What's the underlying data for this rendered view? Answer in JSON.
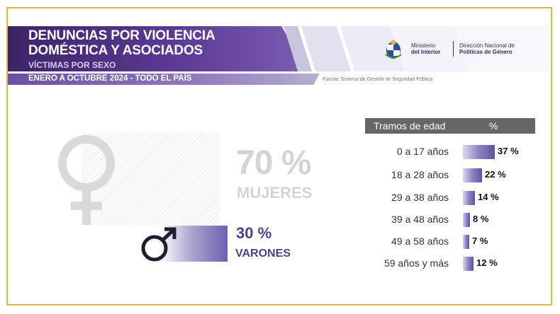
{
  "header": {
    "title_line1": "DENUNCIAS POR VIOLENCIA",
    "title_line2": "DOMÉSTICA Y ASOCIADOS",
    "subtitle": "VÍCTIMAS POR SEXO",
    "period": "ENERO A OCTUBRE 2024 - TODO EL PAÍS",
    "source": "Fuente: Sistema de Gestión de Seguridad Pública"
  },
  "logos": {
    "ministerio_line1": "Ministerio",
    "ministerio_line2": "del Interior",
    "direccion_line1": "Dirección Nacional de",
    "direccion_line2": "Políticas de Género"
  },
  "gender": {
    "women_pct_text": "70 %",
    "women_label": "MUJERES",
    "men_pct_text": "30 %",
    "men_label": "VARONES"
  },
  "age_table": {
    "col_label": "Tramos de edad",
    "col_pct": "%"
  },
  "colors": {
    "accent_purple": "#5a3a92",
    "frame_gold": "#e3b64a",
    "men_text": "#4d3f8a",
    "women_text": "#d4d4d4",
    "table_header": "#666666"
  },
  "chart_data": [
    {
      "type": "bar",
      "categories": [
        "MUJERES",
        "VARONES"
      ],
      "values": [
        70,
        30
      ],
      "value_labels": [
        "70 %",
        "30 %"
      ],
      "xlim": [
        0,
        100
      ]
    },
    {
      "type": "bar",
      "orientation": "horizontal",
      "categories": [
        "0 a 17 años",
        "18 a 28 años",
        "29 a 38 años",
        "39 a 48 años",
        "49 a 58 años",
        "59 años y más"
      ],
      "values": [
        37,
        22,
        14,
        8,
        7,
        12
      ],
      "value_labels": [
        "37 %",
        "22 %",
        "14 %",
        "8 %",
        "7 %",
        "12 %"
      ],
      "xlim": [
        0,
        100
      ]
    }
  ]
}
